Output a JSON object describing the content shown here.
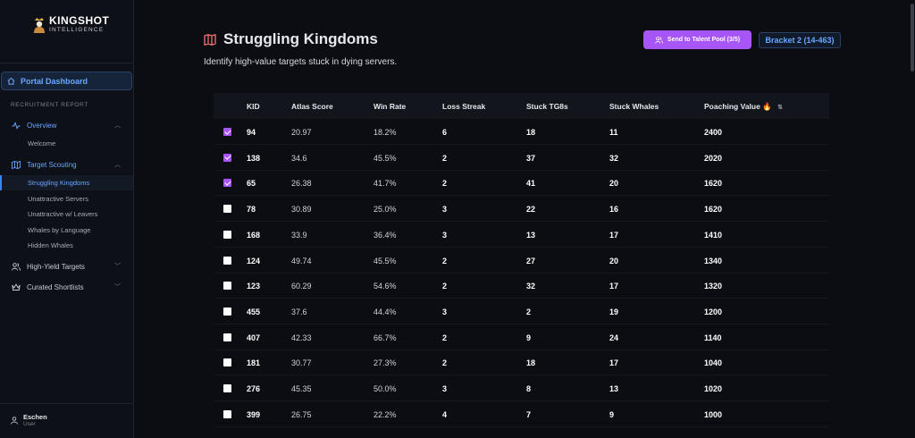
{
  "brand": {
    "name": "KINGSHOT",
    "sub": "INTELLIGENCE"
  },
  "sidebar": {
    "portal_label": "Portal Dashboard",
    "section_label": "RECRUITMENT REPORT",
    "groups": [
      {
        "label": "Overview",
        "icon": "activity-icon"
      },
      {
        "label": "Target Scouting",
        "icon": "map-icon"
      },
      {
        "label": "High-Yield Targets",
        "icon": "users-icon"
      },
      {
        "label": "Curated Shortlists",
        "icon": "crown-icon"
      }
    ],
    "overview_items": [
      "Welcome"
    ],
    "scouting_items": [
      "Struggling Kingdoms",
      "Unattractive Servers",
      "Unattractive w/ Leavers",
      "Whales by Language",
      "Hidden Whales"
    ],
    "user": {
      "name": "Eschen",
      "role": "User"
    }
  },
  "header": {
    "title": "Struggling Kingdoms",
    "subtitle": "Identify high-value targets stuck in dying servers.",
    "send_button": "Send to Talent Pool (3/5)",
    "bracket": "Bracket 2 (14-463)"
  },
  "table": {
    "columns": [
      "KID",
      "Atlas Score",
      "Win Rate",
      "Loss Streak",
      "Stuck TG8s",
      "Stuck Whales",
      "Poaching Value 🔥"
    ],
    "sort_icon": "⇅",
    "rows": [
      {
        "checked": true,
        "cells": [
          "94",
          "20.97",
          "18.2%",
          "6",
          "18",
          "11",
          "2400"
        ]
      },
      {
        "checked": true,
        "cells": [
          "138",
          "34.6",
          "45.5%",
          "2",
          "37",
          "32",
          "2020"
        ]
      },
      {
        "checked": true,
        "cells": [
          "65",
          "26.38",
          "41.7%",
          "2",
          "41",
          "20",
          "1620"
        ]
      },
      {
        "checked": false,
        "cells": [
          "78",
          "30.89",
          "25.0%",
          "3",
          "22",
          "16",
          "1620"
        ]
      },
      {
        "checked": false,
        "cells": [
          "168",
          "33.9",
          "36.4%",
          "3",
          "13",
          "17",
          "1410"
        ]
      },
      {
        "checked": false,
        "cells": [
          "124",
          "49.74",
          "45.5%",
          "2",
          "27",
          "20",
          "1340"
        ]
      },
      {
        "checked": false,
        "cells": [
          "123",
          "60.29",
          "54.6%",
          "2",
          "32",
          "17",
          "1320"
        ]
      },
      {
        "checked": false,
        "cells": [
          "455",
          "37.6",
          "44.4%",
          "3",
          "2",
          "19",
          "1200"
        ]
      },
      {
        "checked": false,
        "cells": [
          "407",
          "42.33",
          "66.7%",
          "2",
          "9",
          "24",
          "1140"
        ]
      },
      {
        "checked": false,
        "cells": [
          "181",
          "30.77",
          "27.3%",
          "2",
          "18",
          "17",
          "1040"
        ]
      },
      {
        "checked": false,
        "cells": [
          "276",
          "45.35",
          "50.0%",
          "3",
          "8",
          "13",
          "1020"
        ]
      },
      {
        "checked": false,
        "cells": [
          "399",
          "26.75",
          "22.2%",
          "4",
          "7",
          "9",
          "1000"
        ]
      }
    ]
  },
  "colors": {
    "accent": "#a855f7",
    "link": "#6aa6ff",
    "bg": "#0b0d12"
  }
}
